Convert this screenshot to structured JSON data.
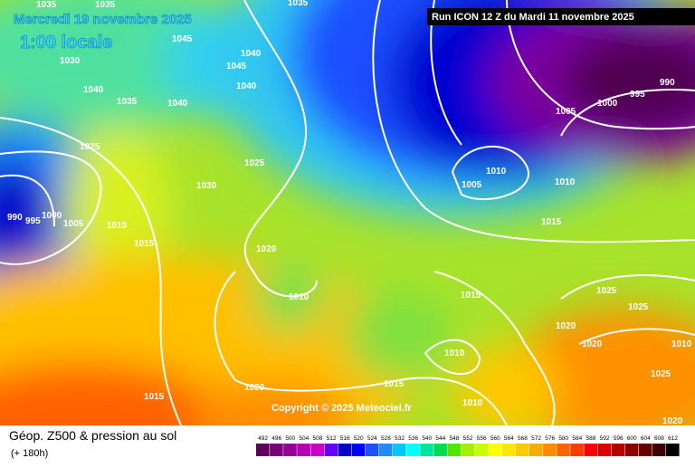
{
  "header": {
    "date": "Mercredi 19 novembre 2025",
    "time": "1:00 locale",
    "run": "Run ICON 12 Z du Mardi 11 novembre 2025"
  },
  "copyright": "Copyright © 2025 Meteociel.fr",
  "legend": {
    "title": "Géop. Z500 & pression au sol",
    "lead": "(+ 180h)",
    "scale": [
      492,
      496,
      500,
      504,
      508,
      512,
      516,
      520,
      524,
      528,
      532,
      536,
      540,
      544,
      548,
      552,
      556,
      560,
      564,
      568,
      572,
      576,
      580,
      584,
      588,
      592,
      596,
      600,
      604,
      608,
      612
    ],
    "colors": [
      "#5c005c",
      "#780078",
      "#960096",
      "#b400b4",
      "#c800c8",
      "#6400ff",
      "#0000c8",
      "#0000ff",
      "#1e50ff",
      "#1e8cff",
      "#00c8ff",
      "#00ffff",
      "#00e6a0",
      "#00dc50",
      "#50e600",
      "#a0f000",
      "#c8ff00",
      "#ffff00",
      "#ffe600",
      "#ffc800",
      "#ffaa00",
      "#ff8c00",
      "#ff6400",
      "#ff3c00",
      "#ff0000",
      "#dc0000",
      "#b40000",
      "#8c0000",
      "#640000",
      "#3c0000",
      "#000000"
    ]
  },
  "isobar_labels": [
    1035,
    1035,
    1035,
    1030,
    1040,
    1035,
    1045,
    1040,
    1045,
    1040,
    1040,
    1025,
    1030,
    1025,
    1005,
    990,
    995,
    1000,
    1010,
    1015,
    1020,
    1010,
    1010,
    1005,
    1010,
    1015,
    1000,
    995,
    990,
    1005,
    1015,
    1025,
    1025,
    1020,
    1020,
    1010,
    1015,
    1020,
    1015,
    1010,
    1025,
    1010,
    1020
  ]
}
